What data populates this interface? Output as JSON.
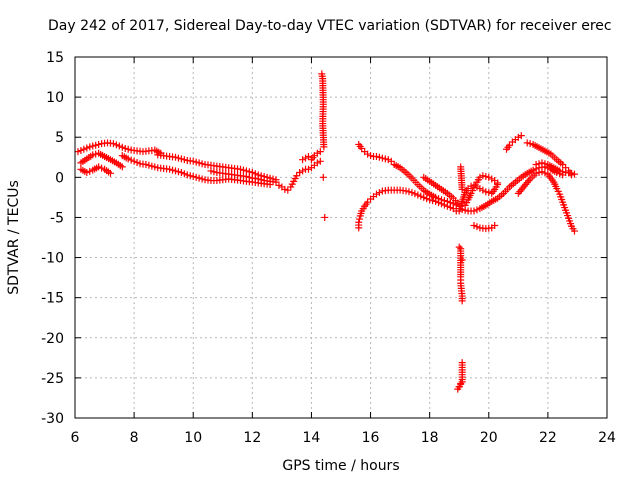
{
  "chart_data": {
    "type": "scatter",
    "title": "Day 242 of 2017, Sidereal Day-to-day VTEC variation (SDTVAR) for receiver erec",
    "xlabel": "GPS time / hours",
    "ylabel": "SDTVAR / TECUs",
    "xlim": [
      6,
      24
    ],
    "ylim": [
      -30,
      15
    ],
    "x_ticks": [
      "6",
      "8",
      "10",
      "12",
      "14",
      "16",
      "18",
      "20",
      "22",
      "24"
    ],
    "y_ticks": [
      "15",
      "10",
      "5",
      "0",
      "-5",
      "-10",
      "-15",
      "-20",
      "-25",
      "-30"
    ],
    "grid": true,
    "marker": "+",
    "color": "#ff0000",
    "series": [
      {
        "name": "SDTVAR",
        "segments": [
          [
            [
              6.1,
              3.2
            ],
            [
              6.3,
              3.5
            ],
            [
              6.5,
              3.8
            ],
            [
              6.7,
              4.0
            ],
            [
              6.9,
              4.2
            ],
            [
              7.1,
              4.3
            ],
            [
              7.3,
              4.2
            ],
            [
              7.5,
              3.9
            ],
            [
              7.7,
              3.6
            ],
            [
              7.9,
              3.4
            ],
            [
              8.1,
              3.3
            ],
            [
              8.3,
              3.2
            ],
            [
              8.5,
              3.3
            ],
            [
              8.7,
              3.4
            ],
            [
              8.9,
              3.0
            ]
          ],
          [
            [
              6.2,
              1.8
            ],
            [
              6.4,
              2.3
            ],
            [
              6.6,
              2.8
            ],
            [
              6.8,
              3.0
            ],
            [
              7.0,
              2.6
            ],
            [
              7.2,
              2.2
            ],
            [
              7.4,
              1.8
            ],
            [
              7.6,
              1.3
            ]
          ],
          [
            [
              6.2,
              1.0
            ],
            [
              6.4,
              0.6
            ],
            [
              6.6,
              0.9
            ],
            [
              6.8,
              1.3
            ],
            [
              7.0,
              1.0
            ],
            [
              7.2,
              0.5
            ]
          ],
          [
            [
              7.6,
              2.7
            ],
            [
              7.8,
              2.3
            ],
            [
              8.0,
              2.0
            ],
            [
              8.2,
              1.7
            ],
            [
              8.4,
              1.6
            ],
            [
              8.6,
              1.4
            ],
            [
              8.8,
              1.2
            ],
            [
              9.0,
              1.1
            ],
            [
              9.2,
              1.0
            ],
            [
              9.4,
              0.8
            ],
            [
              9.6,
              0.6
            ],
            [
              9.8,
              0.3
            ],
            [
              10.0,
              0.1
            ],
            [
              10.2,
              -0.1
            ],
            [
              10.4,
              -0.3
            ],
            [
              10.6,
              -0.4
            ],
            [
              10.8,
              -0.4
            ],
            [
              11.0,
              -0.3
            ],
            [
              11.2,
              -0.2
            ],
            [
              11.4,
              -0.3
            ],
            [
              11.6,
              -0.4
            ],
            [
              11.8,
              -0.5
            ],
            [
              12.0,
              -0.6
            ],
            [
              12.2,
              -0.7
            ],
            [
              12.4,
              -0.8
            ],
            [
              12.6,
              -0.9
            ]
          ],
          [
            [
              8.8,
              2.8
            ],
            [
              9.0,
              2.7
            ],
            [
              9.2,
              2.6
            ],
            [
              9.4,
              2.5
            ],
            [
              9.6,
              2.3
            ],
            [
              9.8,
              2.1
            ],
            [
              10.0,
              2.0
            ],
            [
              10.2,
              1.8
            ],
            [
              10.4,
              1.6
            ],
            [
              10.6,
              1.5
            ],
            [
              10.8,
              1.4
            ],
            [
              11.0,
              1.3
            ],
            [
              11.2,
              1.2
            ],
            [
              11.4,
              1.1
            ],
            [
              11.6,
              1.0
            ],
            [
              11.8,
              0.8
            ],
            [
              12.0,
              0.6
            ],
            [
              12.2,
              0.3
            ],
            [
              12.4,
              0.1
            ],
            [
              12.6,
              -0.1
            ],
            [
              12.8,
              -0.3
            ]
          ],
          [
            [
              10.6,
              0.8
            ],
            [
              10.8,
              0.6
            ],
            [
              11.0,
              0.5
            ],
            [
              11.2,
              0.4
            ],
            [
              11.4,
              0.3
            ],
            [
              11.6,
              0.2
            ],
            [
              11.8,
              0.1
            ],
            [
              12.0,
              -0.1
            ],
            [
              12.2,
              -0.2
            ],
            [
              12.4,
              -0.4
            ],
            [
              12.6,
              -0.5
            ],
            [
              12.8,
              -0.6
            ]
          ],
          [
            [
              12.9,
              -1.0
            ],
            [
              13.0,
              -1.2
            ],
            [
              13.1,
              -1.5
            ],
            [
              13.2,
              -1.6
            ],
            [
              13.3,
              -1.2
            ],
            [
              13.4,
              -0.5
            ],
            [
              13.5,
              0.2
            ],
            [
              13.6,
              0.6
            ],
            [
              13.7,
              0.8
            ],
            [
              13.8,
              1.0
            ],
            [
              13.9,
              1.0
            ],
            [
              14.0,
              1.2
            ],
            [
              14.1,
              1.5
            ],
            [
              14.2,
              1.8
            ],
            [
              14.3,
              2.0
            ]
          ],
          [
            [
              13.7,
              2.2
            ],
            [
              13.8,
              2.4
            ],
            [
              13.9,
              2.6
            ],
            [
              14.0,
              2.2
            ],
            [
              14.1,
              2.7
            ],
            [
              14.2,
              3.0
            ],
            [
              14.3,
              3.2
            ]
          ],
          [
            [
              14.35,
              12.9
            ],
            [
              14.38,
              12.3
            ],
            [
              14.4,
              9.1
            ],
            [
              14.38,
              6.7
            ],
            [
              14.42,
              3.8
            ],
            [
              14.45,
              -5.0
            ],
            [
              14.4,
              0.0
            ]
          ],
          [
            [
              15.6,
              4.1
            ],
            [
              15.7,
              3.6
            ],
            [
              15.8,
              3.2
            ],
            [
              15.9,
              2.9
            ],
            [
              16.0,
              2.7
            ],
            [
              16.1,
              2.6
            ],
            [
              16.2,
              2.6
            ],
            [
              16.3,
              2.5
            ],
            [
              16.4,
              2.4
            ],
            [
              16.5,
              2.3
            ],
            [
              16.6,
              2.2
            ],
            [
              16.7,
              2.0
            ]
          ],
          [
            [
              15.6,
              -6.3
            ],
            [
              15.6,
              -5.6
            ],
            [
              15.65,
              -4.8
            ],
            [
              15.7,
              -4.2
            ],
            [
              15.8,
              -3.6
            ],
            [
              15.9,
              -3.1
            ],
            [
              16.0,
              -2.7
            ],
            [
              16.1,
              -2.4
            ],
            [
              16.2,
              -2.1
            ],
            [
              16.3,
              -1.9
            ],
            [
              16.4,
              -1.7
            ],
            [
              16.6,
              -1.6
            ],
            [
              16.8,
              -1.6
            ],
            [
              17.0,
              -1.6
            ],
            [
              17.2,
              -1.7
            ],
            [
              17.4,
              -1.9
            ],
            [
              17.6,
              -2.2
            ],
            [
              17.8,
              -2.5
            ],
            [
              18.0,
              -2.8
            ],
            [
              18.2,
              -3.0
            ],
            [
              18.4,
              -3.3
            ],
            [
              18.6,
              -3.6
            ],
            [
              18.8,
              -3.9
            ],
            [
              18.9,
              -4.2
            ]
          ],
          [
            [
              16.8,
              1.6
            ],
            [
              17.0,
              1.2
            ],
            [
              17.2,
              0.6
            ],
            [
              17.4,
              -0.1
            ],
            [
              17.6,
              -0.9
            ],
            [
              17.8,
              -1.6
            ],
            [
              18.0,
              -2.1
            ],
            [
              18.2,
              -2.5
            ],
            [
              18.4,
              -2.8
            ],
            [
              18.6,
              -3.0
            ],
            [
              18.8,
              -3.3
            ],
            [
              19.0,
              -3.6
            ]
          ],
          [
            [
              17.8,
              0.0
            ],
            [
              18.0,
              -0.5
            ],
            [
              18.2,
              -1.0
            ],
            [
              18.4,
              -1.5
            ],
            [
              18.6,
              -2.0
            ],
            [
              18.8,
              -2.6
            ],
            [
              18.95,
              -3.2
            ]
          ],
          [
            [
              19.0,
              -8.7
            ],
            [
              19.05,
              -8.9
            ],
            [
              19.05,
              -12.4
            ],
            [
              19.05,
              -13.2
            ],
            [
              19.1,
              -14.8
            ],
            [
              19.1,
              -15.4
            ],
            [
              19.05,
              -25.7
            ],
            [
              19.0,
              -26.1
            ],
            [
              18.95,
              -26.4
            ],
            [
              19.1,
              -25.5
            ],
            [
              19.1,
              -23.1
            ],
            [
              19.1,
              -10.3
            ],
            [
              19.05,
              1.3
            ],
            [
              19.1,
              -1.5
            ]
          ],
          [
            [
              19.0,
              -4.2
            ],
            [
              19.1,
              -3.0
            ],
            [
              19.2,
              -1.9
            ],
            [
              19.3,
              -1.4
            ],
            [
              19.4,
              -1.1
            ],
            [
              19.5,
              -1.0
            ],
            [
              19.6,
              -1.2
            ],
            [
              19.7,
              -1.4
            ],
            [
              19.8,
              -1.6
            ],
            [
              19.9,
              -1.8
            ],
            [
              20.0,
              -1.9
            ],
            [
              20.1,
              -2.0
            ],
            [
              20.2,
              -1.5
            ],
            [
              20.3,
              -0.9
            ]
          ],
          [
            [
              19.2,
              -3.5
            ],
            [
              19.3,
              -2.8
            ],
            [
              19.4,
              -2.0
            ],
            [
              19.5,
              -1.3
            ],
            [
              19.6,
              -0.6
            ],
            [
              19.7,
              0.0
            ],
            [
              19.8,
              0.2
            ],
            [
              19.9,
              0.1
            ],
            [
              20.0,
              0.0
            ],
            [
              20.1,
              -0.2
            ],
            [
              20.2,
              -0.4
            ],
            [
              20.3,
              -0.7
            ]
          ],
          [
            [
              19.1,
              -4.0
            ],
            [
              19.3,
              -4.2
            ],
            [
              19.5,
              -4.2
            ],
            [
              19.7,
              -3.9
            ],
            [
              19.9,
              -3.5
            ],
            [
              20.1,
              -3.0
            ],
            [
              20.3,
              -2.6
            ],
            [
              20.5,
              -2.0
            ],
            [
              20.7,
              -1.2
            ],
            [
              20.9,
              -0.6
            ],
            [
              21.1,
              0.0
            ],
            [
              21.3,
              0.5
            ],
            [
              21.5,
              0.9
            ],
            [
              21.7,
              1.2
            ],
            [
              21.9,
              1.3
            ],
            [
              22.1,
              1.0
            ],
            [
              22.3,
              0.6
            ],
            [
              22.5,
              0.3
            ]
          ],
          [
            [
              19.5,
              -6.0
            ],
            [
              19.7,
              -6.3
            ],
            [
              19.9,
              -6.4
            ],
            [
              20.1,
              -6.3
            ],
            [
              20.2,
              -6.0
            ]
          ],
          [
            [
              20.6,
              3.5
            ],
            [
              20.7,
              4.0
            ],
            [
              20.8,
              4.4
            ],
            [
              20.9,
              4.7
            ],
            [
              21.0,
              5.0
            ],
            [
              21.1,
              5.2
            ]
          ],
          [
            [
              21.3,
              4.3
            ],
            [
              21.5,
              4.1
            ],
            [
              21.7,
              3.7
            ],
            [
              21.9,
              3.3
            ],
            [
              22.1,
              2.9
            ],
            [
              22.3,
              2.2
            ],
            [
              22.5,
              1.6
            ],
            [
              22.6,
              1.2
            ],
            [
              22.7,
              0.8
            ],
            [
              22.8,
              0.3
            ]
          ],
          [
            [
              21.0,
              -2.0
            ],
            [
              21.2,
              -1.1
            ],
            [
              21.4,
              -0.2
            ],
            [
              21.6,
              0.5
            ],
            [
              21.8,
              0.7
            ],
            [
              22.0,
              0.4
            ],
            [
              22.2,
              -0.6
            ],
            [
              22.3,
              -1.4
            ],
            [
              22.4,
              -2.1
            ],
            [
              22.5,
              -3.1
            ],
            [
              22.6,
              -4.1
            ],
            [
              22.7,
              -5.1
            ],
            [
              22.8,
              -6.1
            ],
            [
              22.9,
              -6.7
            ]
          ],
          [
            [
              21.6,
              1.6
            ],
            [
              21.8,
              1.8
            ],
            [
              22.0,
              1.6
            ],
            [
              22.2,
              1.2
            ],
            [
              22.4,
              0.8
            ],
            [
              22.6,
              0.6
            ],
            [
              22.8,
              0.5
            ],
            [
              22.9,
              0.4
            ]
          ]
        ]
      }
    ]
  }
}
